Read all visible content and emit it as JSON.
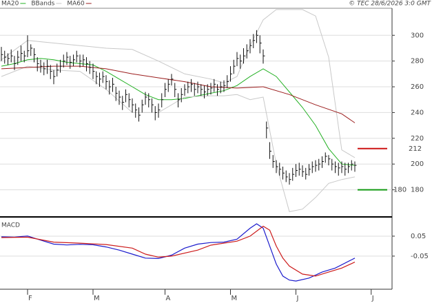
{
  "chart_data": [
    {
      "type": "ohlc",
      "source": "© TEC 28/6/2026 3:0 GMT",
      "ylim": [
        160,
        321
      ],
      "yticks": [
        180,
        200,
        220,
        240,
        260,
        280,
        300
      ],
      "grid": true,
      "xlim": [
        -0.42,
        119.37
      ],
      "close": [
        285,
        283,
        282,
        284,
        278,
        283,
        286,
        284,
        288,
        290,
        285,
        278,
        276,
        274,
        276,
        272,
        268,
        273,
        276,
        280,
        283,
        279,
        281,
        284,
        280,
        281,
        278,
        275,
        272,
        268,
        266,
        268,
        264,
        260,
        262,
        255,
        252,
        248,
        254,
        250,
        246,
        242,
        238,
        246,
        252,
        250,
        246,
        240,
        242,
        250,
        258,
        262,
        266,
        258,
        250,
        254,
        258,
        260,
        262,
        258,
        260,
        258,
        256,
        258,
        259,
        262,
        258,
        260,
        261,
        264,
        270,
        276,
        282,
        280,
        284,
        288,
        292,
        296,
        300,
        294,
        284,
        228,
        210,
        202,
        198,
        196,
        193,
        190,
        188,
        192,
        195,
        196,
        194,
        192,
        196,
        198,
        199,
        200,
        202,
        206,
        204,
        200,
        198,
        197,
        198,
        196,
        198,
        200,
        199
      ],
      "high": [
        291,
        288,
        286,
        289,
        284,
        288,
        292,
        288,
        300,
        293,
        290,
        283,
        281,
        279,
        281,
        277,
        273,
        278,
        281,
        285,
        287,
        284,
        285,
        288,
        285,
        285,
        283,
        280,
        278,
        272,
        271,
        272,
        269,
        265,
        267,
        260,
        257,
        253,
        258,
        255,
        251,
        247,
        244,
        250,
        256,
        255,
        251,
        245,
        247,
        255,
        263,
        266,
        270,
        263,
        255,
        259,
        262,
        264,
        266,
        263,
        264,
        262,
        261,
        262,
        263,
        266,
        262,
        264,
        265,
        269,
        276,
        281,
        287,
        285,
        290,
        293,
        297,
        301,
        304,
        300,
        289,
        233,
        217,
        207,
        203,
        201,
        198,
        195,
        193,
        197,
        200,
        201,
        199,
        197,
        200,
        202,
        203,
        204,
        206,
        209,
        207,
        204,
        202,
        201,
        202,
        201,
        201,
        203,
        202
      ],
      "low": [
        280,
        278,
        277,
        279,
        273,
        277,
        280,
        279,
        283,
        284,
        279,
        272,
        271,
        269,
        270,
        266,
        262,
        268,
        271,
        275,
        277,
        274,
        276,
        279,
        275,
        276,
        272,
        270,
        266,
        262,
        260,
        263,
        258,
        254,
        256,
        249,
        246,
        242,
        248,
        244,
        240,
        236,
        233,
        240,
        246,
        244,
        240,
        234,
        236,
        244,
        252,
        256,
        261,
        252,
        244,
        248,
        253,
        255,
        256,
        253,
        255,
        253,
        251,
        253,
        254,
        256,
        253,
        255,
        256,
        259,
        264,
        270,
        276,
        274,
        278,
        282,
        286,
        290,
        294,
        286,
        278,
        220,
        204,
        197,
        193,
        191,
        188,
        186,
        184,
        187,
        190,
        191,
        190,
        188,
        191,
        193,
        194,
        195,
        197,
        201,
        199,
        195,
        193,
        191,
        193,
        191,
        193,
        195,
        194
      ],
      "series": [
        {
          "name": "MA20",
          "color": "#22b022",
          "x": [
            0,
            4,
            8,
            12,
            16,
            20,
            24,
            28,
            32,
            36,
            40,
            44,
            48,
            52,
            56,
            60,
            64,
            68,
            72,
            76,
            80,
            84,
            88,
            92,
            96,
            100,
            104,
            108
          ],
          "values": [
            276,
            278,
            281,
            282,
            281,
            279,
            278,
            277,
            272,
            266,
            260,
            254,
            250,
            250,
            251,
            253,
            255,
            257,
            261,
            268,
            274,
            268,
            256,
            244,
            230,
            212,
            200,
            199
          ]
        },
        {
          "name": "BBands",
          "color": "#c8c8c8",
          "x": [
            0,
            8,
            16,
            24,
            32,
            40,
            48,
            56,
            64,
            68,
            72,
            76,
            80,
            84,
            88,
            92,
            96,
            100,
            104,
            108
          ],
          "values": [
            281,
            296,
            294,
            292,
            290,
            289,
            280,
            270,
            266,
            263,
            268,
            292,
            312,
            320,
            320,
            320,
            315,
            283,
            211,
            205
          ],
          "lower": [
            268,
            276,
            273,
            272,
            258,
            240,
            240,
            252,
            253,
            253,
            254,
            250,
            252,
            200,
            163,
            165,
            174,
            185,
            188,
            190
          ]
        },
        {
          "name": "MA60",
          "color": "#9b1c1c",
          "x": [
            0,
            8,
            16,
            24,
            32,
            40,
            48,
            56,
            64,
            72,
            80,
            88,
            96,
            104,
            108
          ],
          "values": [
            274,
            275,
            276,
            276,
            274,
            270,
            267,
            264,
            260,
            259,
            260,
            254,
            246,
            239,
            232
          ]
        }
      ],
      "hlines": [
        {
          "value": 212,
          "color": "#cc1111"
        },
        {
          "value": 180,
          "color": "#119911"
        }
      ]
    },
    {
      "type": "line",
      "title": "MACD",
      "ylim": [
        -0.216,
        0.143
      ],
      "yticks": [
        -0.05,
        0.05
      ],
      "xlim": [
        -0.42,
        119.37
      ],
      "xticks": [
        {
          "value": 8,
          "label": "F"
        },
        {
          "value": 28,
          "label": "M"
        },
        {
          "value": 50,
          "label": "A"
        },
        {
          "value": 70,
          "label": "M"
        },
        {
          "value": 90,
          "label": "J"
        },
        {
          "value": 113,
          "label": "J"
        }
      ],
      "series": [
        {
          "color": "#1a1acc",
          "x": [
            0,
            4,
            8,
            12,
            16,
            20,
            24,
            28,
            32,
            36,
            40,
            44,
            48,
            52,
            56,
            60,
            64,
            68,
            72,
            76,
            78,
            80,
            82,
            84,
            86,
            88,
            90,
            94,
            98,
            102,
            108
          ],
          "values": [
            0.047,
            0.045,
            0.051,
            0.03,
            0.01,
            0.006,
            0.009,
            0.007,
            -0.004,
            -0.02,
            -0.04,
            -0.06,
            -0.062,
            -0.045,
            -0.01,
            0.01,
            0.018,
            0.02,
            0.035,
            0.09,
            0.112,
            0.09,
            0.0,
            -0.09,
            -0.15,
            -0.17,
            -0.175,
            -0.16,
            -0.13,
            -0.11,
            -0.06
          ]
        },
        {
          "color": "#cc1a1a",
          "x": [
            0,
            8,
            16,
            24,
            32,
            40,
            44,
            48,
            52,
            60,
            64,
            72,
            76,
            80,
            82,
            84,
            86,
            88,
            92,
            96,
            100,
            104,
            108
          ],
          "values": [
            0.043,
            0.045,
            0.02,
            0.015,
            0.008,
            -0.01,
            -0.04,
            -0.055,
            -0.05,
            -0.02,
            0.005,
            0.025,
            0.05,
            0.1,
            0.08,
            0.0,
            -0.06,
            -0.1,
            -0.14,
            -0.15,
            -0.13,
            -0.11,
            -0.08
          ]
        }
      ]
    }
  ]
}
